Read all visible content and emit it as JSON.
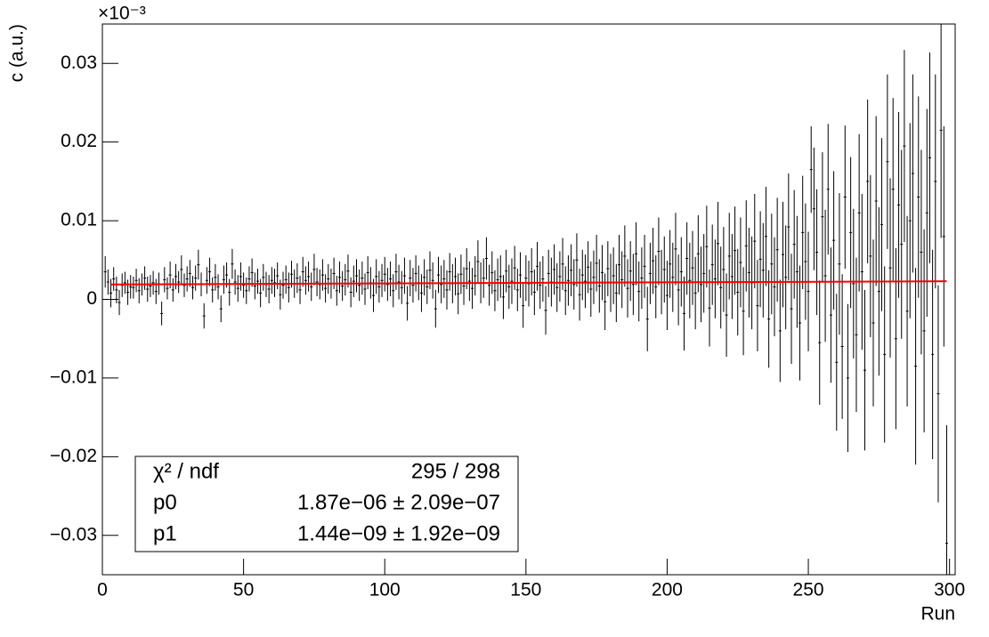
{
  "chart_data": {
    "type": "errorbar",
    "y_label": "c (a.u.)",
    "x_label": "Run",
    "y_multiplier": "×10⁻³",
    "xlim": [
      0,
      302
    ],
    "ylim": [
      -0.035,
      0.035
    ],
    "xticks": [
      0,
      50,
      100,
      150,
      200,
      250,
      300
    ],
    "yticks": [
      {
        "value": -0.03,
        "label": "−0.03"
      },
      {
        "value": -0.02,
        "label": "−0.02"
      },
      {
        "value": -0.01,
        "label": "−0.01"
      },
      0,
      0.01,
      0.02,
      0.03
    ],
    "color": "#000000",
    "x": [
      1,
      2,
      3,
      4,
      5,
      6,
      7,
      8,
      9,
      10,
      11,
      12,
      13,
      14,
      15,
      16,
      17,
      18,
      19,
      20,
      21,
      22,
      23,
      24,
      25,
      26,
      27,
      28,
      29,
      30,
      31,
      32,
      33,
      34,
      35,
      36,
      37,
      38,
      39,
      40,
      41,
      42,
      43,
      44,
      45,
      46,
      47,
      48,
      49,
      50,
      51,
      52,
      53,
      54,
      55,
      56,
      57,
      58,
      59,
      60,
      61,
      62,
      63,
      64,
      65,
      66,
      67,
      68,
      69,
      70,
      71,
      72,
      73,
      74,
      75,
      76,
      77,
      78,
      79,
      80,
      81,
      82,
      83,
      84,
      85,
      86,
      87,
      88,
      89,
      90,
      91,
      92,
      93,
      94,
      95,
      96,
      97,
      98,
      99,
      100,
      101,
      102,
      103,
      104,
      105,
      106,
      107,
      108,
      109,
      110,
      111,
      112,
      113,
      114,
      115,
      116,
      117,
      118,
      119,
      120,
      121,
      122,
      123,
      124,
      125,
      126,
      127,
      128,
      129,
      130,
      131,
      132,
      133,
      134,
      135,
      136,
      137,
      138,
      139,
      140,
      141,
      142,
      143,
      144,
      145,
      146,
      147,
      148,
      149,
      150,
      151,
      152,
      153,
      154,
      155,
      156,
      157,
      158,
      159,
      160,
      161,
      162,
      163,
      164,
      165,
      166,
      167,
      168,
      169,
      170,
      171,
      172,
      173,
      174,
      175,
      176,
      177,
      178,
      179,
      180,
      181,
      182,
      183,
      184,
      185,
      186,
      187,
      188,
      189,
      190,
      191,
      192,
      193,
      194,
      195,
      196,
      197,
      198,
      199,
      200,
      201,
      202,
      203,
      204,
      205,
      206,
      207,
      208,
      209,
      210,
      211,
      212,
      213,
      214,
      215,
      216,
      217,
      218,
      219,
      220,
      221,
      222,
      223,
      224,
      225,
      226,
      227,
      228,
      229,
      230,
      231,
      232,
      233,
      234,
      235,
      236,
      237,
      238,
      239,
      240,
      241,
      242,
      243,
      244,
      245,
      246,
      247,
      248,
      249,
      250,
      251,
      252,
      253,
      254,
      255,
      256,
      257,
      258,
      259,
      260,
      261,
      262,
      263,
      264,
      265,
      266,
      267,
      268,
      269,
      270,
      271,
      272,
      273,
      274,
      275,
      276,
      277,
      278,
      279,
      280,
      281,
      282,
      283,
      284,
      285,
      286,
      287,
      288,
      289,
      290,
      291,
      292,
      293,
      294,
      295,
      296,
      297,
      298,
      299
    ],
    "values": [
      0.0035,
      0.0022,
      0.0008,
      0.0026,
      0.0012,
      -0.0004,
      0.0018,
      0.0021,
      0.0009,
      0.0016,
      0.0015,
      0.0024,
      0.0011,
      0.0019,
      0.0027,
      0.0013,
      0.0017,
      0.0021,
      0.001,
      0.002,
      -0.0018,
      0.0025,
      0.0014,
      0.0031,
      0.0012,
      0.0029,
      0.0022,
      0.0038,
      0.0018,
      0.0026,
      0.0033,
      0.0015,
      0.0027,
      0.0044,
      0.0019,
      -0.0021,
      0.0024,
      0.0035,
      0.0012,
      0.0028,
      0.0016,
      -0.0012,
      0.0025,
      0.0031,
      0.0009,
      0.0045,
      0.0022,
      0.0014,
      0.0029,
      0.0018,
      0.0011,
      0.0026,
      0.0034,
      0.0017,
      0.0023,
      0.0008,
      0.0028,
      0.0019,
      0.0013,
      0.0024,
      0.0021,
      0.003,
      0.0006,
      0.0018,
      0.0025,
      0.0015,
      0.0032,
      0.002,
      0.0027,
      0.0012,
      0.0035,
      0.0024,
      0.0029,
      0.0016,
      0.0038,
      0.0022,
      0.0019,
      0.0031,
      0.0014,
      0.0026,
      0.002,
      0.0033,
      0.0011,
      0.0028,
      0.0017,
      0.0025,
      0.0036,
      0.0009,
      0.0023,
      0.003,
      0.0018,
      0.0027,
      0.0013,
      0.0034,
      0.0021,
      0.0005,
      0.0029,
      0.0016,
      0.0024,
      0.0032,
      0.0019,
      0.0026,
      0.0011,
      0.0035,
      0.0022,
      0.0015,
      0.003,
      -0.0005,
      0.0027,
      0.0018,
      0.0033,
      0.0021,
      0.0008,
      0.0028,
      0.0016,
      0.0037,
      0.0024,
      -0.0012,
      0.0031,
      0.0019,
      0.0026,
      0.0012,
      0.0035,
      0.002,
      0.0029,
      0.0007,
      0.0032,
      0.0017,
      0.0039,
      0.0023,
      0.0014,
      0.003,
      0.0048,
      0.0021,
      0.0027,
      0.0052,
      0.0018,
      0.0034,
      0.0011,
      0.0025,
      0.0029,
      0.0003,
      0.0036,
      0.0016,
      0.0023,
      0.004,
      0.0012,
      0.0031,
      -0.0008,
      0.0027,
      0.002,
      0.0035,
      0.0009,
      0.0042,
      0.0018,
      0.0026,
      -0.0014,
      0.0033,
      0.0022,
      0.0038,
      0.0015,
      0.0029,
      0.0045,
      0.0011,
      0.0024,
      0.0037,
      0.0019,
      0.005,
      0.0006,
      0.0031,
      0.0023,
      0.0041,
      0.0013,
      0.0028,
      0.0046,
      0.0017,
      0.0034,
      -0.0003,
      0.0039,
      0.0021,
      0.003,
      0.0008,
      0.0044,
      0.0025,
      0.0055,
      0.0014,
      0.0036,
      0.0019,
      0.0058,
      0.001,
      0.0027,
      0.0042,
      -0.0025,
      0.0033,
      0.0049,
      0.0016,
      0.0061,
      0.0022,
      0.0038,
      0.0005,
      0.0045,
      0.0028,
      0.0064,
      0.0012,
      0.0035,
      -0.0018,
      0.0052,
      0.0024,
      0.004,
      0.0008,
      0.0058,
      0.0019,
      0.0033,
      0.0067,
      -0.0011,
      0.0044,
      0.0026,
      0.0071,
      0.0015,
      0.0038,
      -0.002,
      0.0055,
      0.0029,
      0.0062,
      0.0009,
      0.0047,
      -0.0015,
      0.0068,
      0.0034,
      0.0021,
      0.0074,
      -0.0008,
      0.0051,
      0.0037,
      0.008,
      -0.0025,
      0.0045,
      0.0016,
      0.0063,
      -0.004,
      0.0057,
      0.0028,
      0.0092,
      -0.0012,
      0.007,
      0.0035,
      -0.003,
      0.0085,
      0.0048,
      0.001,
      0.0165,
      0.0115,
      0.006,
      -0.0055,
      0.0105,
      0.003,
      0.014,
      -0.002,
      0.0075,
      -0.008,
      0.0045,
      -0.006,
      0.013,
      -0.01,
      0.0085,
      0.002,
      -0.0045,
      0.011,
      0.0035,
      -0.009,
      0.015,
      0.0055,
      -0.003,
      0.0125,
      0.001,
      0.0095,
      -0.007,
      0.0175,
      0.004,
      0.014,
      -0.005,
      0.012,
      0.007,
      0.0195,
      -0.0015,
      0.01,
      0.016,
      -0.0085,
      0.013,
      0.006,
      -0.004,
      0.011,
      0.018,
      -0.007,
      0.015,
      -0.012,
      0.0215,
      0.008,
      -0.031
    ],
    "errors": [
      0.002,
      0.0016,
      0.0018,
      0.0015,
      0.0017,
      0.0016,
      0.0015,
      0.0014,
      0.0016,
      0.0015,
      0.0014,
      0.0015,
      0.0016,
      0.0014,
      0.0015,
      0.0016,
      0.0014,
      0.0015,
      0.0016,
      0.0014,
      0.0015,
      0.0016,
      0.0014,
      0.0017,
      0.0015,
      0.0016,
      0.0014,
      0.0018,
      0.0015,
      0.0016,
      0.0017,
      0.0015,
      0.0016,
      0.0019,
      0.0015,
      0.0016,
      0.0017,
      0.0018,
      0.0016,
      0.0017,
      0.0016,
      0.0017,
      0.0018,
      0.0016,
      0.0017,
      0.0019,
      0.0016,
      0.0017,
      0.0018,
      0.0016,
      0.0017,
      0.0016,
      0.0018,
      0.0017,
      0.0016,
      0.0018,
      0.0017,
      0.0016,
      0.0018,
      0.0017,
      0.0018,
      0.0017,
      0.0019,
      0.0017,
      0.0018,
      0.0019,
      0.0017,
      0.0018,
      0.0019,
      0.0018,
      0.0019,
      0.0018,
      0.0019,
      0.0018,
      0.002,
      0.0018,
      0.0019,
      0.002,
      0.0018,
      0.0019,
      0.0019,
      0.002,
      0.0019,
      0.002,
      0.0019,
      0.002,
      0.0021,
      0.0019,
      0.002,
      0.0021,
      0.002,
      0.0021,
      0.002,
      0.0021,
      0.002,
      0.0021,
      0.0022,
      0.002,
      0.0021,
      0.0022,
      0.0021,
      0.0022,
      0.0021,
      0.0023,
      0.0022,
      0.0021,
      0.0023,
      0.0022,
      0.0023,
      0.0022,
      0.0023,
      0.0022,
      0.0024,
      0.0023,
      0.0022,
      0.0024,
      0.0023,
      0.0024,
      0.0023,
      0.0024,
      0.0024,
      0.0025,
      0.0024,
      0.0025,
      0.0024,
      0.0026,
      0.0025,
      0.0024,
      0.0026,
      0.0025,
      0.0026,
      0.0025,
      0.0027,
      0.0026,
      0.0025,
      0.0027,
      0.0026,
      0.0027,
      0.0026,
      0.0027,
      0.0027,
      0.0028,
      0.0027,
      0.0028,
      0.0029,
      0.0028,
      0.0027,
      0.0029,
      0.0028,
      0.0029,
      0.0029,
      0.003,
      0.0029,
      0.0031,
      0.003,
      0.0029,
      0.0031,
      0.003,
      0.0031,
      0.0032,
      0.0031,
      0.0032,
      0.0033,
      0.0031,
      0.0032,
      0.0033,
      0.0032,
      0.0034,
      0.0033,
      0.0032,
      0.0034,
      0.0033,
      0.0035,
      0.0034,
      0.0036,
      0.0034,
      0.0035,
      0.0036,
      0.0035,
      0.0037,
      0.0036,
      0.0037,
      0.0038,
      0.0036,
      0.0039,
      0.0037,
      0.0038,
      0.0039,
      0.004,
      0.0038,
      0.0039,
      0.004,
      0.0041,
      0.0039,
      0.0042,
      0.004,
      0.0043,
      0.0041,
      0.0042,
      0.0044,
      0.0043,
      0.0044,
      0.0046,
      0.0045,
      0.0044,
      0.0047,
      0.0046,
      0.0048,
      0.0047,
      0.0046,
      0.0049,
      0.0048,
      0.005,
      0.0052,
      0.0049,
      0.0051,
      0.005,
      0.0053,
      0.0052,
      0.0054,
      0.0053,
      0.0055,
      0.0054,
      0.0056,
      0.0055,
      0.0057,
      0.0056,
      0.0058,
      0.0057,
      0.0059,
      0.006,
      0.0058,
      0.0061,
      0.006,
      0.0063,
      0.0062,
      0.0064,
      0.0063,
      0.0066,
      0.0065,
      0.0067,
      0.0066,
      0.0068,
      0.007,
      0.0069,
      0.0071,
      0.0073,
      0.0072,
      0.0074,
      0.0076,
      0.0055,
      0.0078,
      0.008,
      0.0079,
      0.0082,
      0.0084,
      0.0083,
      0.0086,
      0.0088,
      0.0087,
      0.009,
      0.0092,
      0.0091,
      0.0094,
      0.0096,
      0.0095,
      0.0098,
      0.01,
      0.0099,
      0.0102,
      0.0104,
      0.0103,
      0.0106,
      0.0108,
      0.0107,
      0.011,
      0.0112,
      0.0111,
      0.0114,
      0.0116,
      0.0115,
      0.0118,
      0.012,
      0.0122,
      0.0121,
      0.0124,
      0.0126,
      0.0125,
      0.0128,
      0.013,
      0.0129,
      0.0132,
      0.0134,
      0.0133,
      0.0136,
      0.0138,
      0.0137,
      0.014,
      0.015
    ],
    "fit": {
      "color": "#ff0000",
      "x": [
        3,
        299
      ],
      "values": [
        0.0019,
        0.0023
      ]
    },
    "stats": {
      "rows": [
        {
          "name": "χ² / ndf",
          "value": "295 / 298"
        },
        {
          "name": "p0",
          "value": "1.87e−06 ± 2.09e−07"
        },
        {
          "name": "p1",
          "value": "1.44e−09 ± 1.92e−09"
        }
      ]
    }
  }
}
